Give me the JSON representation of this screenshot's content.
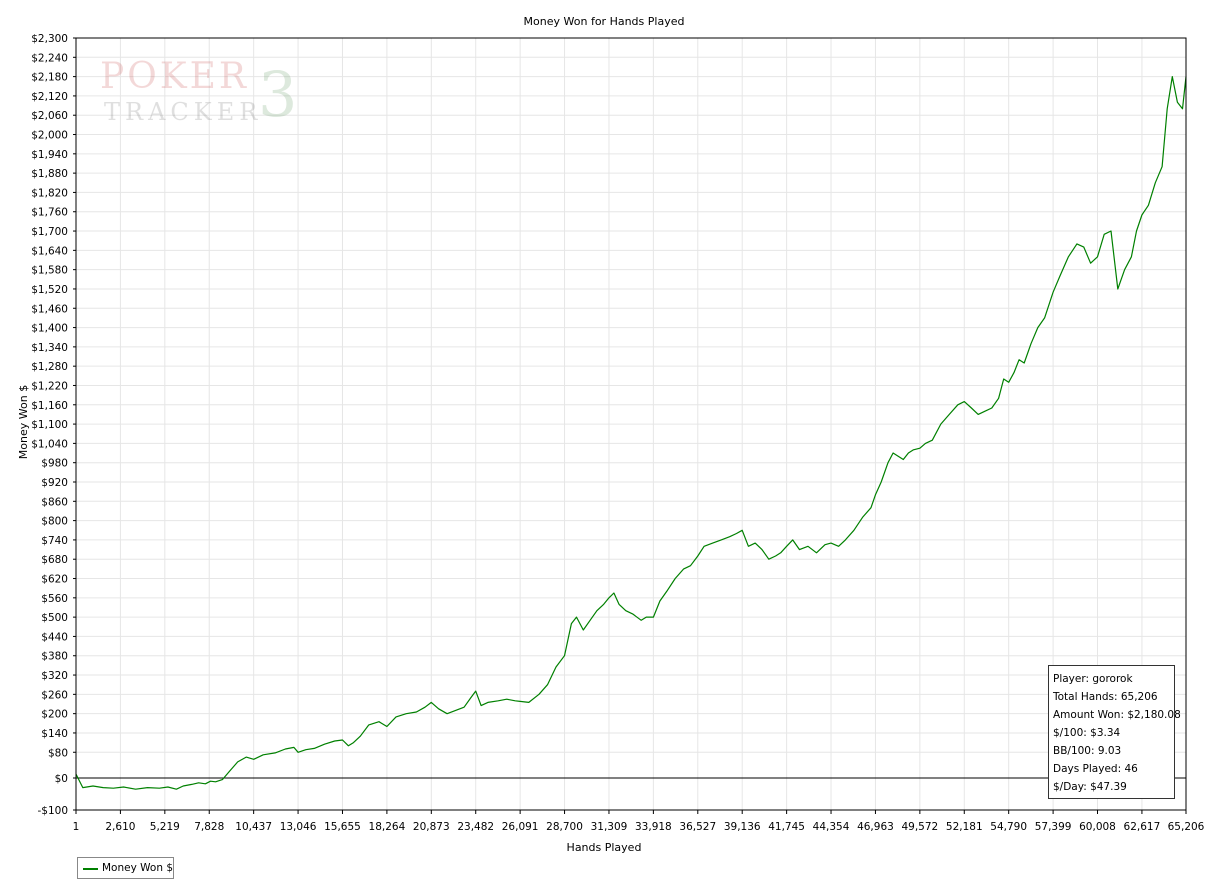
{
  "chart_data": {
    "type": "line",
    "title": "Money Won for Hands Played",
    "xlabel": "Hands Played",
    "ylabel": "Money Won $",
    "xlim": [
      1,
      65206
    ],
    "ylim": [
      -100,
      2300
    ],
    "x_ticks": [
      1,
      2610,
      5219,
      7828,
      10437,
      13046,
      15655,
      18264,
      20873,
      23482,
      26091,
      28700,
      31309,
      33918,
      36527,
      39136,
      41745,
      44354,
      46963,
      49572,
      52181,
      54790,
      57399,
      60008,
      62617,
      65206
    ],
    "x_tick_labels": [
      "1",
      "2,610",
      "5,219",
      "7,828",
      "10,437",
      "13,046",
      "15,655",
      "18,264",
      "20,873",
      "23,482",
      "26,091",
      "28,700",
      "31,309",
      "33,918",
      "36,527",
      "39,136",
      "41,745",
      "44,354",
      "46,963",
      "49,572",
      "52,181",
      "54,790",
      "57,399",
      "60,008",
      "62,617",
      "65,206"
    ],
    "y_ticks": [
      -100,
      0,
      80,
      140,
      200,
      260,
      320,
      380,
      440,
      500,
      560,
      620,
      680,
      740,
      800,
      860,
      920,
      980,
      1040,
      1100,
      1160,
      1220,
      1280,
      1340,
      1400,
      1460,
      1520,
      1580,
      1640,
      1700,
      1760,
      1820,
      1880,
      1940,
      2000,
      2060,
      2120,
      2180,
      2240,
      2300
    ],
    "y_tick_labels": [
      "-$100",
      "$0",
      "$80",
      "$140",
      "$200",
      "$260",
      "$320",
      "$380",
      "$440",
      "$500",
      "$560",
      "$620",
      "$680",
      "$740",
      "$800",
      "$860",
      "$920",
      "$980",
      "$1,040",
      "$1,100",
      "$1,160",
      "$1,220",
      "$1,280",
      "$1,340",
      "$1,400",
      "$1,460",
      "$1,520",
      "$1,580",
      "$1,640",
      "$1,700",
      "$1,760",
      "$1,820",
      "$1,880",
      "$1,940",
      "$2,000",
      "$2,060",
      "$2,120",
      "$2,180",
      "$2,240",
      "$2,300"
    ],
    "grid": true,
    "legend_position": "bottom-left",
    "series": [
      {
        "name": "Money Won $",
        "color": "#008000",
        "x": [
          1,
          400,
          1000,
          1600,
          2200,
          2800,
          3500,
          4200,
          4900,
          5400,
          5900,
          6300,
          6800,
          7200,
          7600,
          7900,
          8200,
          8600,
          9000,
          9500,
          10000,
          10437,
          11000,
          11700,
          12300,
          12800,
          13046,
          13500,
          14000,
          14600,
          15200,
          15655,
          16000,
          16300,
          16700,
          17200,
          17800,
          18264,
          18800,
          19400,
          20000,
          20500,
          20873,
          21300,
          21800,
          22300,
          22800,
          23200,
          23482,
          23800,
          24200,
          24800,
          25300,
          25800,
          26091,
          26600,
          27200,
          27700,
          28200,
          28700,
          29100,
          29400,
          29800,
          30200,
          30600,
          31000,
          31309,
          31600,
          31900,
          32300,
          32700,
          33200,
          33500,
          33918,
          34300,
          34700,
          35200,
          35700,
          36100,
          36527,
          36900,
          37400,
          37900,
          38400,
          38800,
          39136,
          39500,
          39900,
          40300,
          40700,
          41100,
          41400,
          41745,
          42100,
          42500,
          43000,
          43500,
          44000,
          44354,
          44800,
          45200,
          45700,
          46200,
          46700,
          46963,
          47300,
          47700,
          48000,
          48300,
          48600,
          48900,
          49200,
          49572,
          49900,
          50300,
          50800,
          51300,
          51800,
          52181,
          52600,
          53000,
          53400,
          53800,
          54200,
          54500,
          54790,
          55100,
          55400,
          55700,
          56100,
          56500,
          56900,
          57399,
          57800,
          58300,
          58800,
          59200,
          59600,
          60008,
          60400,
          60800,
          61200,
          61600,
          62000,
          62300,
          62617,
          63000,
          63400,
          63800,
          64100,
          64400,
          64700,
          65000,
          65206
        ],
        "y": [
          12,
          -30,
          -25,
          -30,
          -32,
          -28,
          -35,
          -30,
          -32,
          -28,
          -35,
          -25,
          -20,
          -15,
          -18,
          -10,
          -12,
          -5,
          20,
          50,
          65,
          58,
          72,
          78,
          90,
          95,
          80,
          88,
          92,
          105,
          115,
          118,
          100,
          110,
          130,
          165,
          175,
          160,
          190,
          200,
          205,
          220,
          235,
          215,
          200,
          210,
          220,
          250,
          270,
          225,
          235,
          240,
          245,
          240,
          238,
          235,
          260,
          290,
          345,
          380,
          480,
          500,
          460,
          490,
          520,
          540,
          560,
          575,
          540,
          520,
          510,
          490,
          500,
          500,
          550,
          580,
          620,
          650,
          660,
          690,
          720,
          730,
          740,
          750,
          760,
          770,
          720,
          730,
          710,
          680,
          690,
          700,
          720,
          740,
          710,
          720,
          700,
          725,
          730,
          720,
          740,
          770,
          810,
          840,
          880,
          920,
          980,
          1010,
          1000,
          990,
          1010,
          1020,
          1025,
          1040,
          1050,
          1100,
          1130,
          1160,
          1170,
          1150,
          1130,
          1140,
          1150,
          1180,
          1240,
          1230,
          1260,
          1300,
          1290,
          1350,
          1400,
          1430,
          1510,
          1560,
          1620,
          1660,
          1650,
          1600,
          1620,
          1690,
          1700,
          1520,
          1580,
          1620,
          1700,
          1750,
          1780,
          1850,
          1900,
          2080,
          2180,
          2100,
          2080,
          2180
        ]
      }
    ]
  },
  "stats": {
    "player": "Player: gororok",
    "total_hands": "Total Hands: 65,206",
    "amount_won": "Amount Won: $2,180.08",
    "per_100": "$/100: $3.34",
    "bb_100": "BB/100: 9.03",
    "days_played": "Days Played: 46",
    "per_day": "$/Day: $47.39"
  },
  "watermark": {
    "line1": "POKER",
    "line2": "TRACKER",
    "version": "3"
  },
  "legend": {
    "label": "Money Won $"
  }
}
